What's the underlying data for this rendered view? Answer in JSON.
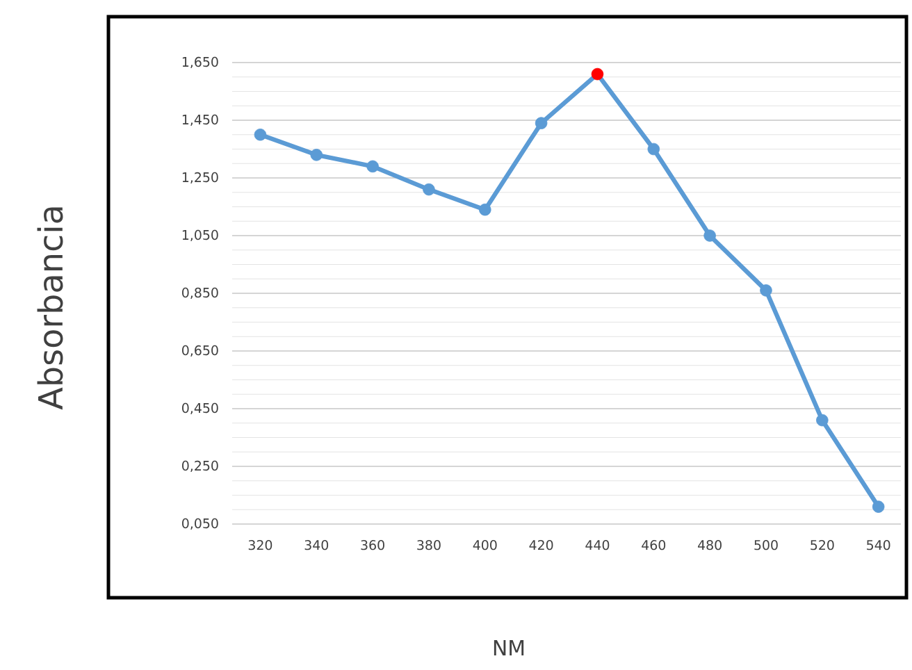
{
  "chart_data": {
    "type": "line",
    "xlabel": "NM",
    "ylabel": "Absorbancia",
    "categories": [
      "320",
      "340",
      "360",
      "380",
      "400",
      "420",
      "440",
      "460",
      "480",
      "500",
      "520",
      "540"
    ],
    "series": [
      {
        "color": "#5b9bd5",
        "colors": [
          "#5b9bd5",
          "#5b9bd5",
          "#5b9bd5",
          "#5b9bd5",
          "#5b9bd5",
          "#5b9bd5",
          "#ff0000",
          "#5b9bd5",
          "#5b9bd5",
          "#5b9bd5",
          "#5b9bd5",
          "#5b9bd5"
        ],
        "values": [
          1.4,
          1.33,
          1.29,
          1.21,
          1.14,
          1.44,
          1.61,
          1.35,
          1.05,
          0.86,
          0.41,
          0.11
        ]
      }
    ],
    "ylim": [
      0.05,
      1.65
    ],
    "yticks": [
      {
        "value": 0.05,
        "label": "0,050"
      },
      {
        "value": 0.25,
        "label": "0,250"
      },
      {
        "value": 0.45,
        "label": "0,450"
      },
      {
        "value": 0.65,
        "label": "0,650"
      },
      {
        "value": 0.85,
        "label": "0,850"
      },
      {
        "value": 1.05,
        "label": "1,050"
      },
      {
        "value": 1.25,
        "label": "1,250"
      },
      {
        "value": 1.45,
        "label": "1,450"
      },
      {
        "value": 1.65,
        "label": "1,650"
      }
    ],
    "grid": "y",
    "marker": "circle",
    "line_style": "solid"
  }
}
